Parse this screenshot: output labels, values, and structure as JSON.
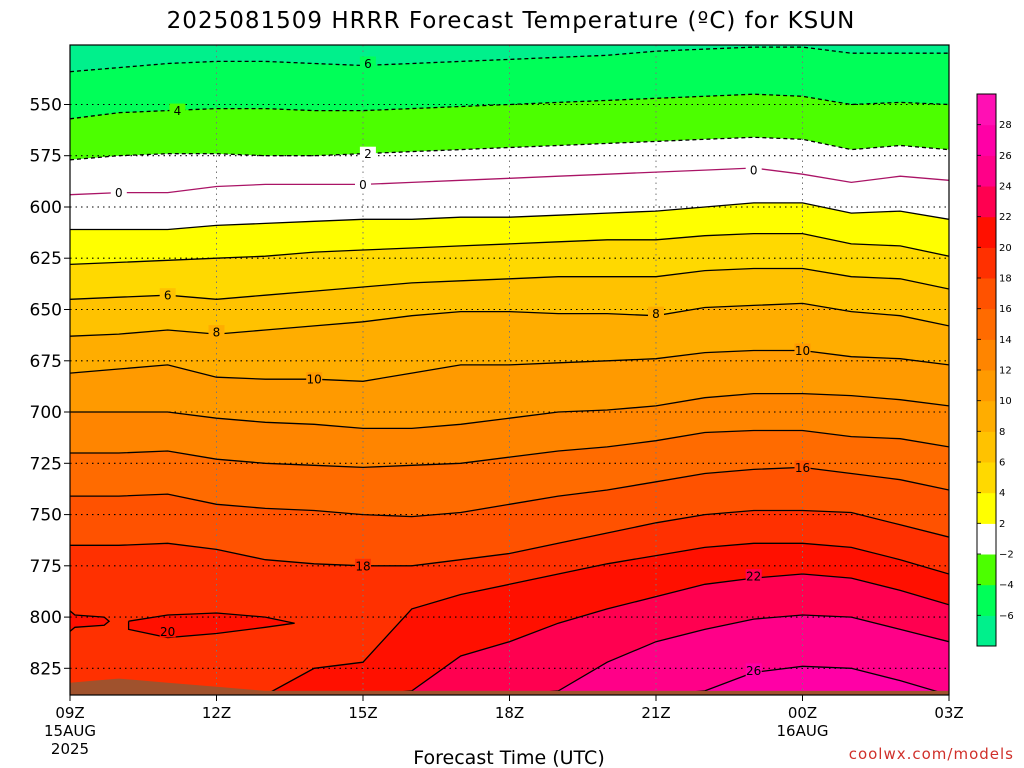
{
  "chart_data": {
    "type": "heatmap",
    "title": "2025081509 HRRR Forecast Temperature (ºC) for KSUN",
    "xlabel": "Forecast Time (UTC)",
    "ylabel": "",
    "credit": "coolwx.com/models",
    "y_scale": "linear",
    "y_inverted": true,
    "grid": true,
    "x_ticks": [
      {
        "hour": 9,
        "label": "09Z",
        "sub1": "15AUG",
        "sub2": "2025"
      },
      {
        "hour": 12,
        "label": "12Z",
        "sub1": "",
        "sub2": ""
      },
      {
        "hour": 15,
        "label": "15Z",
        "sub1": "",
        "sub2": ""
      },
      {
        "hour": 18,
        "label": "18Z",
        "sub1": "",
        "sub2": ""
      },
      {
        "hour": 21,
        "label": "21Z",
        "sub1": "",
        "sub2": ""
      },
      {
        "hour": 24,
        "label": "00Z",
        "sub1": "16AUG",
        "sub2": ""
      },
      {
        "hour": 27,
        "label": "03Z",
        "sub1": "",
        "sub2": ""
      }
    ],
    "xlim": [
      9,
      27
    ],
    "y_ticks": [
      550,
      575,
      600,
      625,
      650,
      675,
      700,
      725,
      750,
      775,
      800,
      825
    ],
    "ylim": [
      838,
      521
    ],
    "hours": [
      9,
      10,
      11,
      12,
      13,
      14,
      15,
      16,
      17,
      18,
      19,
      20,
      21,
      22,
      23,
      24,
      25,
      26,
      27
    ],
    "isolines": [
      {
        "level": -6,
        "label": "6",
        "dashed": true,
        "color": "#000000",
        "p": [
          534,
          532,
          530,
          529,
          529,
          530,
          531,
          530,
          529,
          528,
          527,
          526,
          524,
          523,
          522,
          522,
          525,
          525,
          525
        ]
      },
      {
        "level": -4,
        "label": "4",
        "dashed": true,
        "color": "#000000",
        "p": [
          557,
          554,
          553,
          552,
          552,
          553,
          553,
          552,
          551,
          550,
          549,
          548,
          547,
          546,
          545,
          546,
          550,
          549,
          550
        ]
      },
      {
        "level": -2,
        "label": "2",
        "dashed": true,
        "color": "#000000",
        "p": [
          577,
          575,
          574,
          574,
          575,
          575,
          574,
          573,
          572,
          571,
          570,
          569,
          568,
          567,
          566,
          567,
          572,
          570,
          572
        ]
      },
      {
        "level": 0,
        "label": "0",
        "dashed": false,
        "color": "#aa1466",
        "p": [
          594,
          593,
          593,
          590,
          589,
          589,
          589,
          588,
          587,
          586,
          585,
          584,
          583,
          582,
          581,
          584,
          588,
          585,
          587
        ]
      },
      {
        "level": 2,
        "label": "",
        "dashed": false,
        "color": "#000000",
        "p": [
          611,
          611,
          611,
          609,
          608,
          607,
          606,
          606,
          605,
          605,
          604,
          603,
          602,
          600,
          598,
          598,
          603,
          602,
          606
        ]
      },
      {
        "level": 4,
        "label": "",
        "dashed": false,
        "color": "#000000",
        "p": [
          628,
          627,
          626,
          625,
          624,
          622,
          621,
          620,
          619,
          618,
          617,
          616,
          616,
          614,
          613,
          613,
          618,
          619,
          624
        ]
      },
      {
        "level": 6,
        "label": "6",
        "dashed": false,
        "color": "#000000",
        "p": [
          645,
          644,
          643,
          645,
          643,
          641,
          639,
          637,
          636,
          635,
          634,
          634,
          634,
          631,
          630,
          630,
          634,
          635,
          640
        ]
      },
      {
        "level": 8,
        "label": "8",
        "dashed": false,
        "color": "#000000",
        "p": [
          663,
          662,
          660,
          662,
          660,
          658,
          656,
          653,
          651,
          651,
          652,
          652,
          653,
          649,
          648,
          647,
          651,
          653,
          658
        ]
      },
      {
        "level": 10,
        "label": "10",
        "dashed": false,
        "color": "#000000",
        "p": [
          681,
          679,
          677,
          683,
          684,
          684,
          685,
          681,
          677,
          677,
          676,
          675,
          674,
          671,
          670,
          670,
          673,
          674,
          677
        ]
      },
      {
        "level": 12,
        "label": "",
        "dashed": false,
        "color": "#000000",
        "p": [
          700,
          700,
          700,
          703,
          705,
          706,
          708,
          708,
          706,
          703,
          700,
          699,
          697,
          693,
          691,
          691,
          692,
          694,
          697
        ]
      },
      {
        "level": 14,
        "label": "",
        "dashed": false,
        "color": "#000000",
        "p": [
          720,
          720,
          719,
          723,
          725,
          726,
          727,
          726,
          725,
          722,
          719,
          717,
          714,
          710,
          709,
          709,
          712,
          713,
          717
        ]
      },
      {
        "level": 16,
        "label": "16",
        "dashed": false,
        "color": "#000000",
        "p": [
          741,
          741,
          740,
          745,
          747,
          748,
          750,
          751,
          749,
          745,
          741,
          738,
          734,
          730,
          728,
          727,
          730,
          733,
          738
        ]
      },
      {
        "level": 18,
        "label": "18",
        "dashed": false,
        "color": "#000000",
        "p": [
          765,
          765,
          764,
          767,
          772,
          774,
          775,
          775,
          772,
          769,
          764,
          759,
          754,
          750,
          748,
          748,
          749,
          755,
          761
        ]
      },
      {
        "level": 20,
        "label": "20",
        "dashed": false,
        "color": "#000000",
        "p": [
          838,
          838,
          838,
          838,
          838,
          825,
          822,
          796,
          789,
          784,
          779,
          774,
          770,
          766,
          764,
          764,
          766,
          772,
          779
        ]
      },
      {
        "level": 22,
        "label": "22",
        "dashed": false,
        "color": "#000000",
        "p": [
          838,
          838,
          838,
          838,
          838,
          838,
          838,
          836,
          819,
          812,
          803,
          796,
          790,
          784,
          781,
          779,
          781,
          787,
          794
        ]
      },
      {
        "level": 24,
        "label": "",
        "dashed": false,
        "color": "#000000",
        "p": [
          838,
          838,
          838,
          838,
          838,
          838,
          838,
          838,
          838,
          838,
          836,
          822,
          812,
          806,
          801,
          799,
          800,
          806,
          812
        ]
      },
      {
        "level": 26,
        "label": "26",
        "dashed": false,
        "color": "#000000",
        "p": [
          838,
          838,
          838,
          838,
          838,
          838,
          838,
          838,
          838,
          838,
          838,
          838,
          838,
          836,
          827,
          824,
          825,
          831,
          838
        ]
      }
    ],
    "isoline_labels": [
      {
        "level": -6,
        "text": "6",
        "hour": 15.1,
        "p": 530
      },
      {
        "level": -4,
        "text": "4",
        "hour": 11.2,
        "p": 553
      },
      {
        "level": -2,
        "text": "2",
        "hour": 15.1,
        "p": 574
      },
      {
        "level": 0,
        "text": "0",
        "hour": 10.0,
        "p": 593
      },
      {
        "level": 0,
        "text": "0",
        "hour": 15.0,
        "p": 589
      },
      {
        "level": 0,
        "text": "0",
        "hour": 23.0,
        "p": 582
      },
      {
        "level": 6,
        "text": "6",
        "hour": 11.0,
        "p": 643
      },
      {
        "level": 8,
        "text": "8",
        "hour": 12.0,
        "p": 661
      },
      {
        "level": 8,
        "text": "8",
        "hour": 21.0,
        "p": 652
      },
      {
        "level": 10,
        "text": "10",
        "hour": 14.0,
        "p": 684
      },
      {
        "level": 10,
        "text": "10",
        "hour": 24.0,
        "p": 670
      },
      {
        "level": 16,
        "text": "16",
        "hour": 24.0,
        "p": 727
      },
      {
        "level": 18,
        "text": "18",
        "hour": 15.0,
        "p": 775
      },
      {
        "level": 20,
        "text": "20",
        "hour": 11.0,
        "p": 807
      },
      {
        "level": 22,
        "text": "22",
        "hour": 23.0,
        "p": 780
      },
      {
        "level": 26,
        "text": "26",
        "hour": 23.0,
        "p": 826
      }
    ],
    "islands": [
      {
        "level": 20,
        "dashed": false,
        "color": "#000000",
        "pts": [
          [
            9.0,
            797
          ],
          [
            9.1,
            799
          ],
          [
            9.7,
            800
          ],
          [
            9.8,
            802
          ],
          [
            9.7,
            804
          ],
          [
            9.1,
            805
          ],
          [
            9.0,
            807
          ]
        ]
      },
      {
        "level": 20,
        "dashed": false,
        "color": "#000000",
        "pts": [
          [
            10.2,
            802
          ],
          [
            11.0,
            799
          ],
          [
            12.0,
            798
          ],
          [
            13.0,
            800
          ],
          [
            13.6,
            803
          ],
          [
            13.0,
            805
          ],
          [
            12.0,
            808
          ],
          [
            11.0,
            810
          ],
          [
            10.2,
            806
          ],
          [
            10.2,
            802
          ]
        ]
      }
    ],
    "surface_hump": [
      [
        9.0,
        832
      ],
      [
        9.5,
        831
      ],
      [
        10.0,
        830
      ],
      [
        10.5,
        831
      ],
      [
        11.0,
        832
      ],
      [
        12.0,
        834
      ],
      [
        13.0,
        836
      ],
      [
        27.0,
        836
      ]
    ],
    "colorbar": {
      "levels": [
        -8,
        -6,
        -4,
        -2,
        2,
        4,
        6,
        8,
        10,
        12,
        14,
        16,
        18,
        20,
        22,
        24,
        26,
        28,
        30
      ],
      "colors": [
        "#00f08c",
        "#00ff58",
        "#4cff00",
        "#ffffff",
        "#ffff00",
        "#ffd900",
        "#ffc200",
        "#ffad00",
        "#ff9a00",
        "#ff8500",
        "#ff6b00",
        "#ff5200",
        "#ff3000",
        "#ff1000",
        "#ff0050",
        "#ff0088",
        "#ff00a6",
        "#ff10b4"
      ],
      "tick_labels": [
        "−6",
        "−4",
        "−2",
        "2",
        "4",
        "6",
        "8",
        "10",
        "12",
        "14",
        "16",
        "18",
        "20",
        "22",
        "24",
        "26",
        "28"
      ]
    },
    "fill_colors": {
      "-8": "#00f08c",
      "-6": "#00ff58",
      "-4": "#4cff00",
      "-2": "#ffffff",
      "0": "#ffffff",
      "2": "#ffff00",
      "4": "#ffd900",
      "6": "#ffc200",
      "8": "#ffad00",
      "10": "#ff9a00",
      "12": "#ff8500",
      "14": "#ff6b00",
      "16": "#ff5200",
      "18": "#ff3000",
      "20": "#ff1000",
      "22": "#ff0050",
      "24": "#ff0088",
      "26": "#ff00a6"
    },
    "terrain_color": "#a0522d"
  }
}
